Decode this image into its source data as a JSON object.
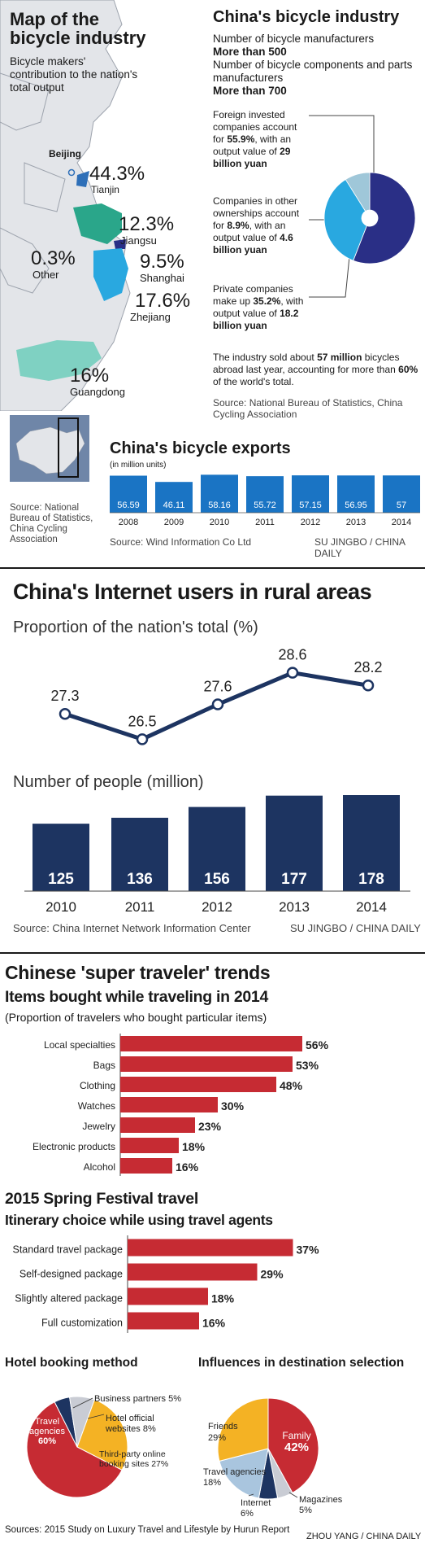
{
  "bicycle": {
    "map_title": "Map of the bicycle industry",
    "map_subtitle": "Bicycle makers' contribution to the nation's total output",
    "map_labels": {
      "beijing": "Beijing",
      "tianjin_value": "44.3%",
      "tianjin": "Tianjin",
      "jiangsu_value": "12.3%",
      "jiangsu": "Jiangsu",
      "shanghai_value": "9.5%",
      "shanghai": "Shanghai",
      "other_value": "0.3%",
      "other": "Other",
      "zhejiang_value": "17.6%",
      "zhejiang": "Zhejiang",
      "guangdong_value": "16%",
      "guangdong": "Guangdong"
    },
    "map_source": "Source: National Bureau of Statistics, China Cycling Association",
    "industry_title": "China's bicycle industry",
    "manufacturers_label": "Number of bicycle manufacturers",
    "manufacturers_value": "More than 500",
    "components_label": "Number of bicycle components and parts manufacturers",
    "components_value": "More than 700",
    "foreign_pre": "Foreign invested companies account for ",
    "foreign_pct": "55.9%",
    "foreign_mid": ", with an output value of ",
    "foreign_value": "29 billion yuan",
    "other_pre": "Companies in other ownerships account for ",
    "other_pct": "8.9%",
    "other_mid": ", with an output value of ",
    "other_value": "4.6 billion yuan",
    "private_pre": "Private companies make up ",
    "private_pct": "35.2%",
    "private_mid": ", with output value of ",
    "private_value": "18.2 billion yuan",
    "sold_pre": "The industry sold about ",
    "sold_num": "57 million",
    "sold_mid": " bicycles abroad last year, accounting for more than ",
    "sold_pct": "60%",
    "sold_post": " of the world's total.",
    "industry_source": "Source: National Bureau of Statistics, China Cycling Association",
    "exports_title": "China's bicycle exports",
    "exports_unit": "(in million units)",
    "exports_source": "Source: Wind Information Co Ltd",
    "credit": "SU JINGBO / CHINA DAILY"
  },
  "internet": {
    "title": "China's Internet users in rural areas",
    "line_title": "Proportion of the nation's total (%)",
    "bar_title": "Number of people (million)",
    "source": "Source: China Internet Network Information Center",
    "credit": "SU JINGBO / CHINA DAILY"
  },
  "travel": {
    "title": "Chinese 'super traveler' trends",
    "items_title": "Items bought while traveling in 2014",
    "items_subtitle": "(Proportion of travelers who bought particular items)",
    "spring_title": "2015 Spring Festival travel",
    "itinerary_title": "Itinerary choice while using travel agents",
    "hotel_title": "Hotel booking method",
    "influence_title": "Influences in destination selection",
    "source": "Sources: 2015 Study on Luxury Travel and Lifestyle by Hurun Report",
    "credit": "ZHOU YANG / CHINA DAILY"
  },
  "colors": {
    "red": "#c62b33",
    "navy": "#1d3461",
    "blue": "#1a74c4",
    "teal": "#4fbfbf",
    "yellow": "#f4b224",
    "lightblue": "#a9c5de",
    "gray": "#c9ccd4"
  },
  "chart_data": [
    {
      "type": "pie",
      "categories": [
        "Foreign invested",
        "Other ownerships",
        "Private"
      ],
      "values": [
        55.9,
        8.9,
        35.2
      ],
      "colors": [
        "#2a2f86",
        "#9fc7d9",
        "#29a8e0"
      ],
      "donut": true
    },
    {
      "type": "bar",
      "title": "China's bicycle exports",
      "categories": [
        "2008",
        "2009",
        "2010",
        "2011",
        "2012",
        "2013",
        "2014"
      ],
      "values": [
        56.59,
        46.11,
        58.16,
        55.72,
        57.15,
        56.95,
        57
      ],
      "labels": [
        "56.59",
        "46.11",
        "58.16",
        "55.72",
        "57.15",
        "56.95",
        "57"
      ],
      "ylim": [
        0,
        60
      ]
    },
    {
      "type": "line",
      "title": "Proportion of the nation's total (%)",
      "categories": [
        "2010",
        "2011",
        "2012",
        "2013",
        "2014"
      ],
      "values": [
        27.3,
        26.5,
        27.6,
        28.6,
        28.2
      ],
      "labels": [
        "27.3",
        "26.5",
        "27.6",
        "28.6",
        "28.2"
      ],
      "ylim": [
        26.2,
        28.9
      ]
    },
    {
      "type": "bar",
      "title": "Number of people (million)",
      "categories": [
        "2010",
        "2011",
        "2012",
        "2013",
        "2014"
      ],
      "values": [
        125,
        136,
        156,
        177,
        178
      ],
      "labels": [
        "125",
        "136",
        "156",
        "177",
        "178"
      ],
      "ylim": [
        0,
        178
      ]
    },
    {
      "type": "bar",
      "title": "Items bought while traveling in 2014",
      "orientation": "horizontal",
      "categories": [
        "Local specialties",
        "Bags",
        "Clothing",
        "Watches",
        "Jewelry",
        "Electronic products",
        "Alcohol"
      ],
      "values": [
        56,
        53,
        48,
        30,
        23,
        18,
        16
      ],
      "labels": [
        "56%",
        "53%",
        "48%",
        "30%",
        "23%",
        "18%",
        "16%"
      ]
    },
    {
      "type": "bar",
      "title": "Itinerary choice while using travel agents",
      "orientation": "horizontal",
      "categories": [
        "Standard travel package",
        "Self-designed package",
        "Slightly altered package",
        "Full customization"
      ],
      "values": [
        37,
        29,
        18,
        16
      ],
      "labels": [
        "37%",
        "29%",
        "18%",
        "16%"
      ]
    },
    {
      "type": "pie",
      "title": "Hotel booking method",
      "categories": [
        "Travel agencies",
        "Third-party online booking sites",
        "Hotel official websites",
        "Business partners"
      ],
      "values": [
        60,
        27,
        8,
        5
      ],
      "labels": [
        "60%",
        "27%",
        "8%",
        "5%"
      ],
      "colors": [
        "#c62b33",
        "#f4b224",
        "#c9ccd4",
        "#1d3461"
      ]
    },
    {
      "type": "pie",
      "title": "Influences in destination selection",
      "categories": [
        "Family",
        "Magazines",
        "Internet",
        "Travel agencies",
        "Friends"
      ],
      "values": [
        42,
        5,
        6,
        18,
        29
      ],
      "labels": [
        "42%",
        "5%",
        "6%",
        "18%",
        "29%"
      ],
      "colors": [
        "#c62b33",
        "#c9ccd4",
        "#1d3461",
        "#a9c5de",
        "#f4b224"
      ]
    }
  ]
}
